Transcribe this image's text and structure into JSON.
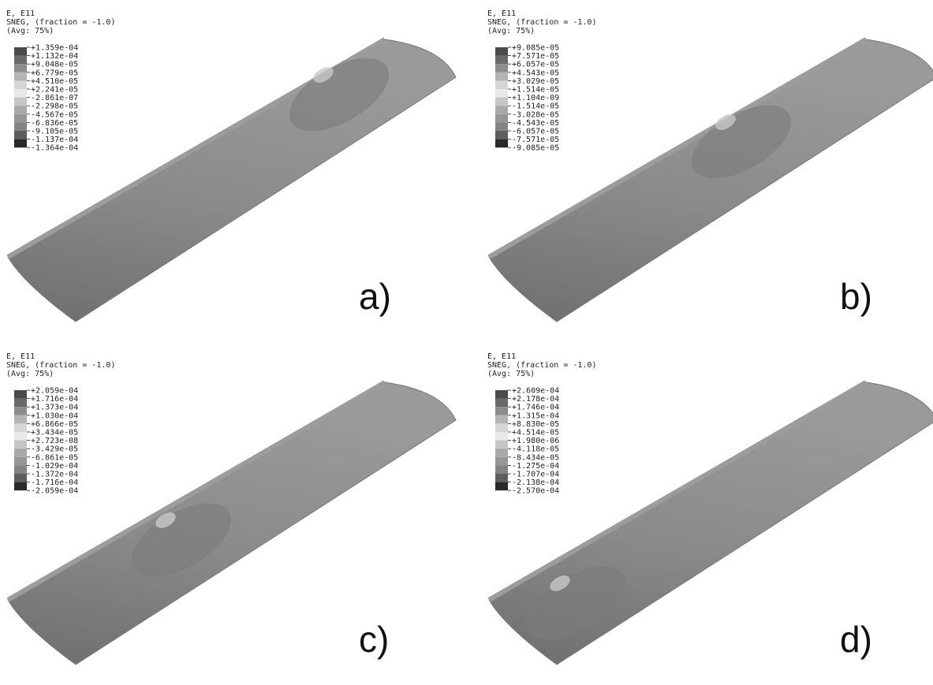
{
  "panels": [
    {
      "lines": [
        "E, E11",
        "SNEG, (fraction = -1.0)",
        "(Avg: 75%)"
      ],
      "legend": [
        "+1.359e-04",
        "+1.132e-04",
        "+9.048e-05",
        "+6.779e-05",
        "+4.510e-05",
        "+2.241e-05",
        "-2.861e-07",
        "-2.298e-05",
        "-4.567e-05",
        "-6.836e-05",
        "-9.105e-05",
        "-1.137e-04",
        "-1.364e-04"
      ],
      "label": "a)"
    },
    {
      "lines": [
        "E, E11",
        "SNEG, (fraction = -1.0)",
        "(Avg: 75%)"
      ],
      "legend": [
        "+9.085e-05",
        "+7.571e-05",
        "+6.057e-05",
        "+4.543e-05",
        "+3.029e-05",
        "+1.514e-05",
        "+1.104e-09",
        "-1.514e-05",
        "-3.028e-05",
        "-4.543e-05",
        "-6.057e-05",
        "-7.571e-05",
        "-9.085e-05"
      ],
      "label": "b)"
    },
    {
      "lines": [
        "E, E11",
        "SNEG, (fraction = -1.0)",
        "(Avg: 75%)"
      ],
      "legend": [
        "+2.059e-04",
        "+1.716e-04",
        "+1.373e-04",
        "+1.030e-04",
        "+6.866e-05",
        "+3.434e-05",
        "+2.723e-08",
        "-3.429e-05",
        "-6.861e-05",
        "-1.029e-04",
        "-1.372e-04",
        "-1.716e-04",
        "-2.059e-04"
      ],
      "label": "c)"
    },
    {
      "lines": [
        "E, E11",
        "SNEG, (fraction = -1.0)",
        "(Avg: 75%)"
      ],
      "legend": [
        "+2.609e-04",
        "+2.178e-04",
        "+1.746e-04",
        "+1.315e-04",
        "+8.830e-05",
        "+4.514e-05",
        "+1.980e-06",
        "-4.118e-05",
        "-8.434e-05",
        "-1.275e-04",
        "-1.707e-04",
        "-2.138e-04",
        "-2.570e-04"
      ],
      "label": "d)"
    }
  ]
}
